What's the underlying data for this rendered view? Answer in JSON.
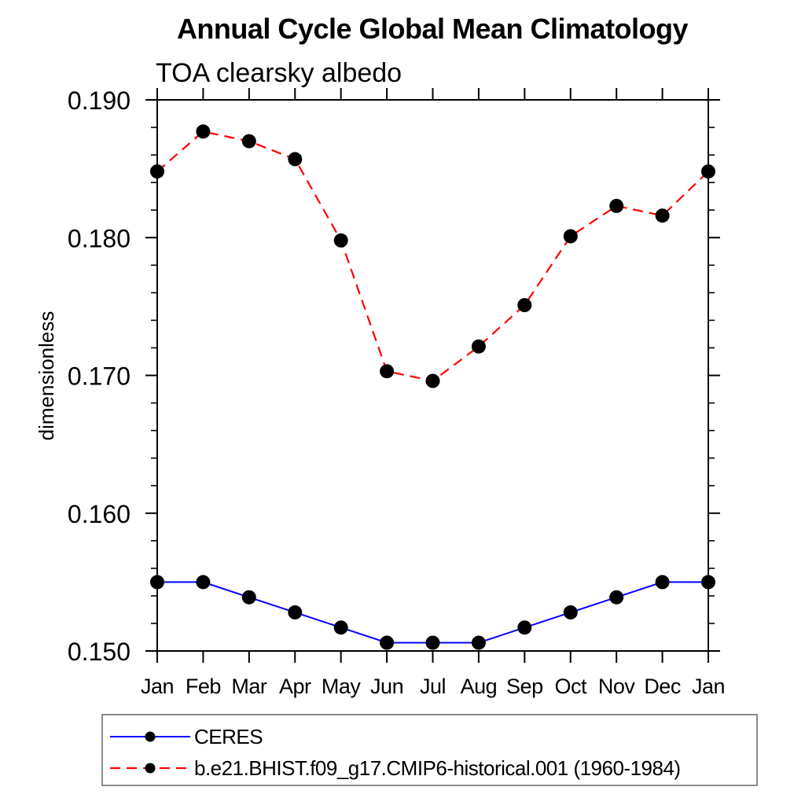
{
  "chart_data": {
    "type": "line",
    "title": "Annual Cycle Global Mean Climatology",
    "subtitle": "TOA clearsky albedo",
    "ylabel": "dimensionless",
    "x_categories": [
      "Jan",
      "Feb",
      "Mar",
      "Apr",
      "May",
      "Jun",
      "Jul",
      "Aug",
      "Sep",
      "Oct",
      "Nov",
      "Dec",
      "Jan"
    ],
    "ylim": [
      0.15,
      0.19
    ],
    "ytick_values": [
      0.15,
      0.16,
      0.17,
      0.18,
      0.19
    ],
    "ytick_labels": [
      "0.150",
      "0.160",
      "0.170",
      "0.180",
      "0.190"
    ],
    "ytick_minor_step": 0.002,
    "grid": false,
    "legend_position": "bottom-left",
    "colors": {
      "axis": "#000000",
      "marker": "#000000",
      "ceres_line": "#0000ff",
      "model_line": "#ff0000",
      "legend_border": "#666666"
    },
    "series": [
      {
        "name": "CERES",
        "line_color": "#0000ff",
        "line_style": "solid",
        "marker": "filled-circle",
        "marker_color": "#000000",
        "values": [
          0.155,
          0.155,
          0.1539,
          0.1528,
          0.1517,
          0.1506,
          0.1506,
          0.1506,
          0.1517,
          0.1528,
          0.1539,
          0.155,
          0.155
        ]
      },
      {
        "name": "b.e21.BHIST.f09_g17.CMIP6-historical.001 (1960-1984)",
        "line_color": "#ff0000",
        "line_style": "dashed",
        "marker": "filled-circle",
        "marker_color": "#000000",
        "values": [
          0.1848,
          0.1877,
          0.187,
          0.1857,
          0.1798,
          0.1703,
          0.1696,
          0.1721,
          0.1751,
          0.1801,
          0.1823,
          0.1816,
          0.1848
        ]
      }
    ]
  }
}
